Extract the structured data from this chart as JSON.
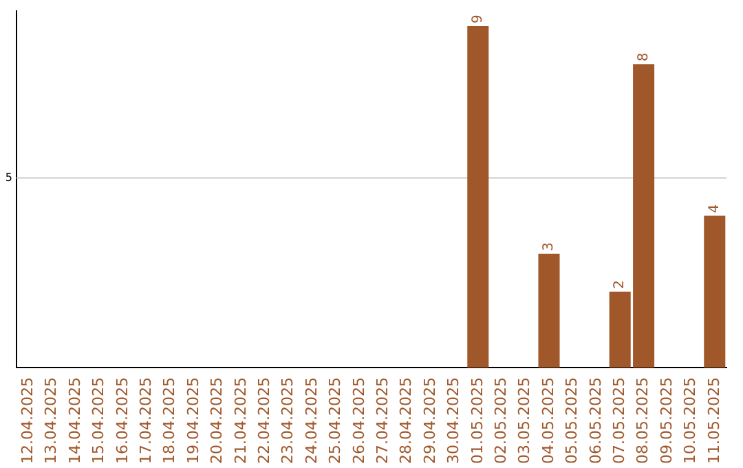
{
  "chart_data": {
    "type": "bar",
    "categories": [
      "12.04.2025",
      "13.04.2025",
      "14.04.2025",
      "15.04.2025",
      "16.04.2025",
      "17.04.2025",
      "18.04.2025",
      "19.04.2025",
      "20.04.2025",
      "21.04.2025",
      "22.04.2025",
      "23.04.2025",
      "24.04.2025",
      "25.04.2025",
      "26.04.2025",
      "27.04.2025",
      "28.04.2025",
      "29.04.2025",
      "30.04.2025",
      "01.05.2025",
      "02.05.2025",
      "03.05.2025",
      "04.05.2025",
      "05.05.2025",
      "06.05.2025",
      "07.05.2025",
      "08.05.2025",
      "09.05.2025",
      "10.05.2025",
      "11.05.2025"
    ],
    "values": [
      null,
      null,
      null,
      null,
      null,
      null,
      null,
      null,
      null,
      null,
      null,
      null,
      null,
      null,
      null,
      null,
      null,
      null,
      null,
      9,
      null,
      null,
      3,
      null,
      null,
      2,
      8,
      null,
      null,
      4
    ],
    "data_labels": true,
    "color": "#a0572a",
    "ylim": [
      0,
      9.4
    ],
    "ref_lines": [
      {
        "axis": "y",
        "value": 5,
        "label": "5",
        "color": "#cccccc"
      }
    ],
    "legend": false
  }
}
